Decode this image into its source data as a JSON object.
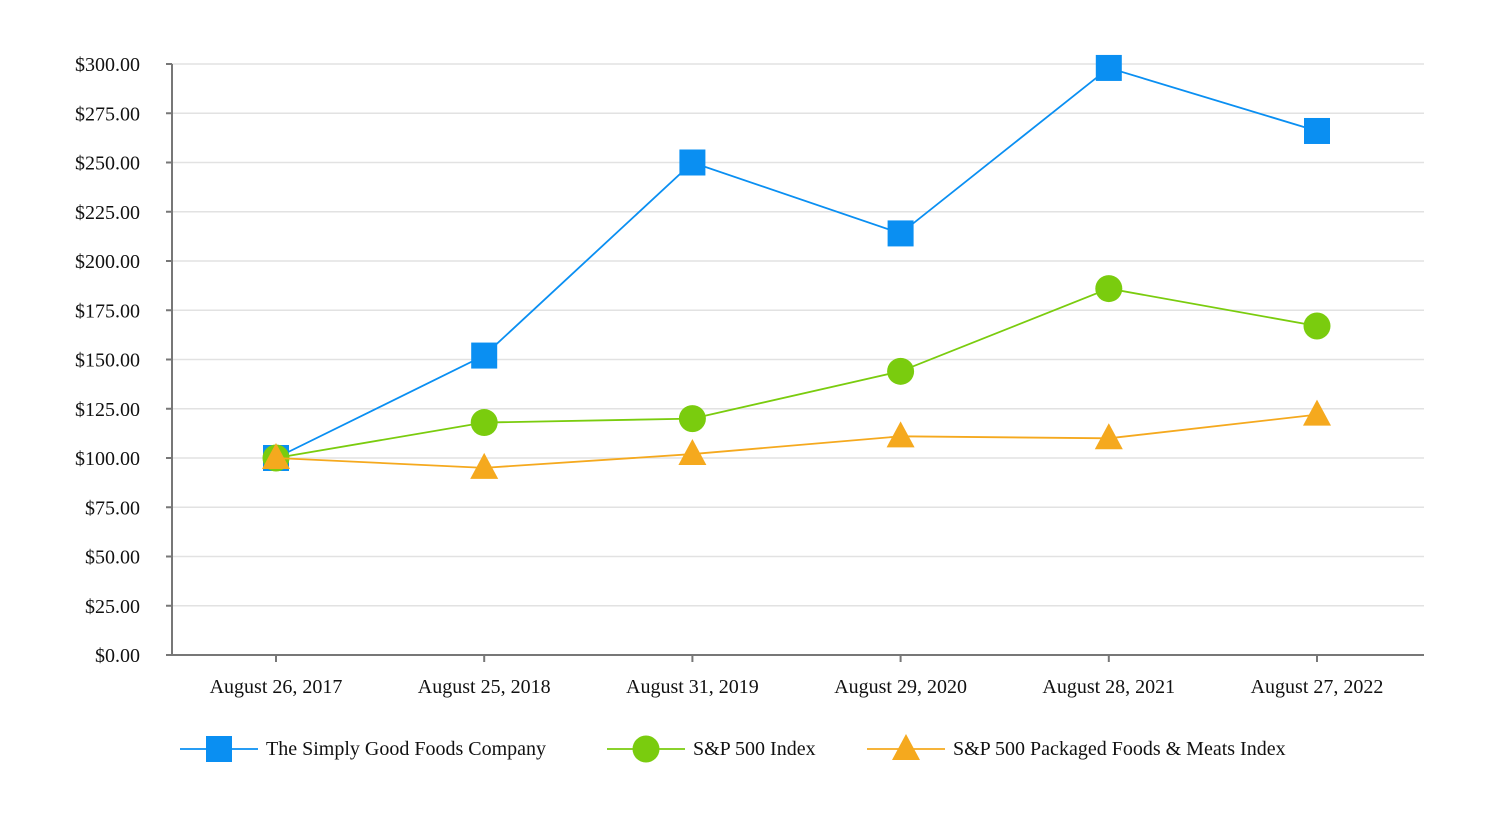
{
  "chart_data": {
    "type": "line",
    "title": "",
    "xlabel": "",
    "ylabel": "",
    "categories": [
      "August 26, 2017",
      "August 25, 2018",
      "August 31, 2019",
      "August 29, 2020",
      "August 28, 2021",
      "August 27, 2022"
    ],
    "ylim": [
      0,
      300
    ],
    "yticks": [
      0,
      25,
      50,
      75,
      100,
      125,
      150,
      175,
      200,
      225,
      250,
      275,
      300
    ],
    "ytick_labels": [
      "$0.00",
      "$25.00",
      "$50.00",
      "$75.00",
      "$100.00",
      "$125.00",
      "$150.00",
      "$175.00",
      "$200.00",
      "$225.00",
      "$250.00",
      "$275.00",
      "$300.00"
    ],
    "grid": true,
    "legend_position": "bottom",
    "series": [
      {
        "name": "The Simply Good Foods Company",
        "marker": "square",
        "color": "#0a8ff2",
        "values": [
          100,
          152,
          250,
          214,
          298,
          266
        ]
      },
      {
        "name": "S&P 500 Index",
        "marker": "circle",
        "color": "#7acc0e",
        "values": [
          100,
          118,
          120,
          144,
          186,
          167
        ]
      },
      {
        "name": "S&P 500 Packaged Foods & Meats Index",
        "marker": "triangle",
        "color": "#f5a91e",
        "values": [
          100,
          95,
          102,
          111,
          110,
          122
        ]
      }
    ]
  }
}
